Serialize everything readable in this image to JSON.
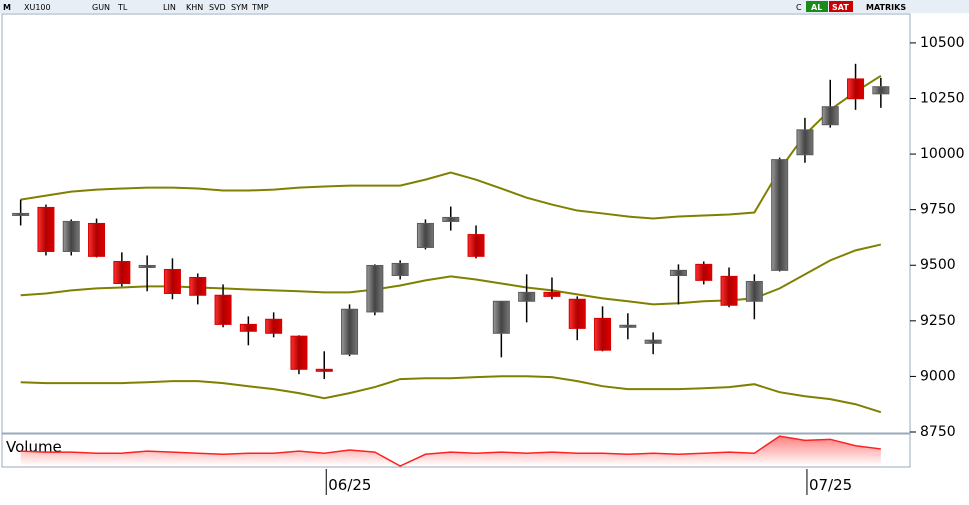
{
  "toolbar": {
    "logo": "M",
    "symbol": "XU100",
    "buttons": [
      "GUN",
      "TL",
      "LIN",
      "KHN",
      "SVD",
      "SYM",
      "TMP"
    ],
    "c": "C",
    "buy": "AL",
    "sell": "SAT",
    "brand": "MATRIKS"
  },
  "chart_data": {
    "type": "candlestick",
    "categories": [
      null,
      null,
      null,
      null,
      null,
      null,
      null,
      null,
      null,
      null,
      null,
      null,
      "06/25",
      null,
      null,
      null,
      null,
      null,
      null,
      null,
      null,
      null,
      null,
      null,
      null,
      null,
      null,
      null,
      null,
      null,
      null,
      "07/25",
      null,
      null,
      null
    ],
    "open": [
      9733,
      9760,
      9562,
      9688,
      9517,
      9490,
      9481,
      9445,
      9365,
      9234,
      9257,
      9181,
      9032,
      9100,
      9290,
      9454,
      9580,
      9697,
      9638,
      9194,
      9338,
      9378,
      9347,
      9261,
      9228,
      9149,
      9454,
      9504,
      9450,
      9338,
      9477,
      9997,
      10132,
      10338,
      10271
    ],
    "high": [
      9795,
      9773,
      9706,
      9710,
      9558,
      9544,
      9531,
      9463,
      9414,
      9270,
      9288,
      9185,
      9113,
      9324,
      9504,
      9522,
      9706,
      9764,
      9679,
      9338,
      9459,
      9445,
      9360,
      9315,
      9284,
      9198,
      9504,
      9517,
      9490,
      9459,
      9984,
      10163,
      10334,
      10406,
      10343
    ],
    "low": [
      9679,
      9544,
      9544,
      9535,
      9405,
      9383,
      9347,
      9324,
      9221,
      9140,
      9176,
      9010,
      8988,
      9091,
      9275,
      9436,
      9571,
      9656,
      9531,
      9086,
      9243,
      9347,
      9163,
      9113,
      9167,
      9100,
      9324,
      9414,
      9311,
      9257,
      9472,
      9961,
      10119,
      10199,
      10208
    ],
    "close": [
      9733,
      9562,
      9697,
      9540,
      9418,
      9499,
      9373,
      9365,
      9234,
      9203,
      9194,
      9032,
      9028,
      9302,
      9499,
      9508,
      9688,
      9715,
      9540,
      9338,
      9378,
      9360,
      9216,
      9118,
      9230,
      9163,
      9477,
      9432,
      9320,
      9427,
      9975,
      10109,
      10213,
      10249,
      10303
    ],
    "up_color": "#5a5a5a",
    "down_color": "#d40000",
    "bands": {
      "color": "#808000",
      "upper": [
        9795,
        9813,
        9831,
        9840,
        9845,
        9849,
        9849,
        9845,
        9836,
        9836,
        9840,
        9849,
        9854,
        9858,
        9858,
        9858,
        9885,
        9917,
        9885,
        9845,
        9804,
        9773,
        9746,
        9733,
        9719,
        9710,
        9719,
        9724,
        9728,
        9737,
        9930,
        10087,
        10199,
        10280,
        10352
      ],
      "middle": [
        9365,
        9373,
        9387,
        9396,
        9400,
        9405,
        9405,
        9400,
        9396,
        9391,
        9387,
        9383,
        9378,
        9378,
        9391,
        9409,
        9432,
        9450,
        9436,
        9418,
        9400,
        9387,
        9369,
        9351,
        9338,
        9324,
        9329,
        9338,
        9342,
        9351,
        9396,
        9459,
        9522,
        9567,
        9593
      ],
      "lower": [
        8974,
        8970,
        8970,
        8970,
        8970,
        8974,
        8979,
        8979,
        8970,
        8956,
        8943,
        8925,
        8902,
        8925,
        8952,
        8988,
        8992,
        8992,
        8997,
        9001,
        9001,
        8997,
        8979,
        8956,
        8943,
        8943,
        8943,
        8947,
        8952,
        8965,
        8929,
        8911,
        8898,
        8875,
        8839
      ]
    },
    "ylim": [
      8750,
      10630
    ],
    "yticks": [
      8750,
      9000,
      9250,
      9500,
      9750,
      10000,
      10250,
      10500
    ],
    "volume_label": "Volume",
    "volume_color": "#ff2020",
    "volume_ylim": [
      0,
      30
    ],
    "volume": [
      14,
      13,
      13,
      12,
      12,
      14,
      13,
      12,
      11,
      12,
      12,
      14,
      12,
      15,
      13,
      0,
      11,
      13,
      12,
      13,
      12,
      13,
      12,
      12,
      11,
      12,
      11,
      12,
      13,
      12,
      28,
      24,
      25,
      19,
      16
    ]
  }
}
